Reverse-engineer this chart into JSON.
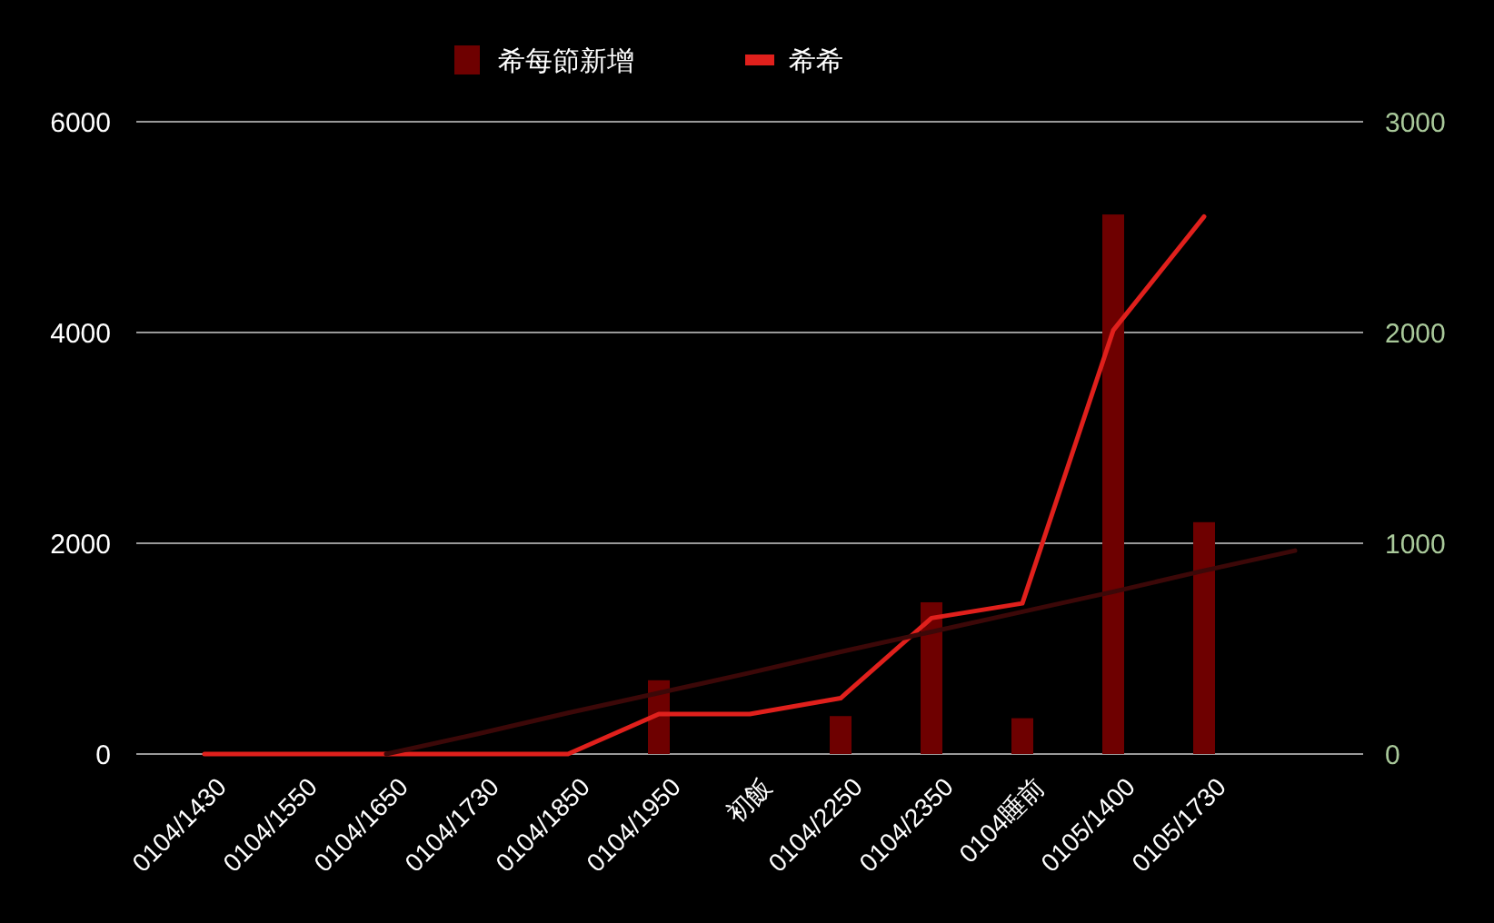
{
  "chart_data": {
    "type": "bar",
    "categories": [
      "0104/1430",
      "0104/1550",
      "0104/1650",
      "0104/1730",
      "0104/1850",
      "0104/1950",
      "初飯",
      "0104/2250",
      "0104/2350",
      "0104睡前",
      "0105/1400",
      "0105/1730",
      null
    ],
    "series": [
      {
        "name": "希每節新增",
        "axis": "y2",
        "color": "#6e0000",
        "values": [
          null,
          null,
          null,
          null,
          null,
          350,
          null,
          180,
          720,
          170,
          2560,
          1100,
          null
        ]
      },
      {
        "name": "希希",
        "type": "line",
        "color": "#e0201c",
        "values": [
          0,
          0,
          0,
          0,
          0,
          380,
          380,
          530,
          1290,
          1430,
          4020,
          5100,
          null
        ]
      },
      {
        "type": "line",
        "color": "#3c0808",
        "values": [
          null,
          null,
          0,
          190,
          390,
          580,
          770,
          970,
          1160,
          1350,
          1540,
          1740,
          1930
        ]
      }
    ],
    "ylim": [
      0,
      6000
    ],
    "yticks": [
      0,
      2000,
      4000,
      6000
    ],
    "y2lim": [
      0,
      3000
    ],
    "y2ticks": [
      0,
      1000,
      2000,
      3000
    ],
    "grid": "y",
    "legend": "top"
  }
}
